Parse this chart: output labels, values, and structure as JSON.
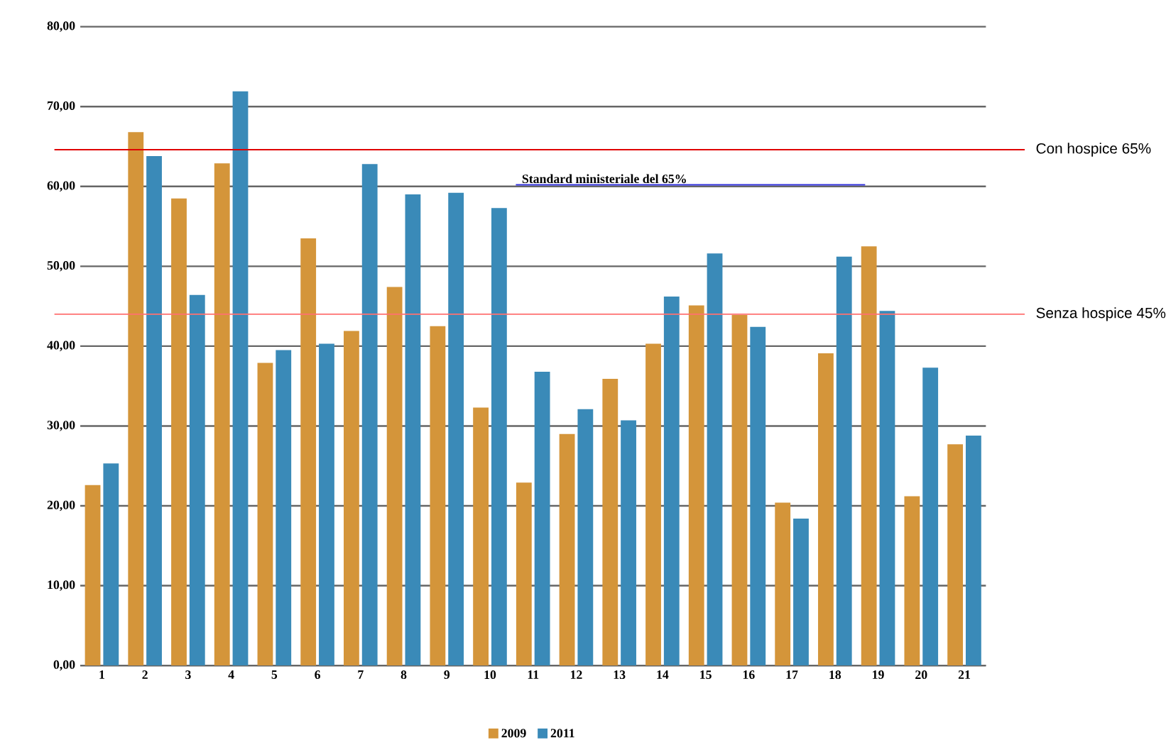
{
  "chart_data": {
    "type": "bar",
    "categories": [
      "1",
      "2",
      "3",
      "4",
      "5",
      "6",
      "7",
      "8",
      "9",
      "10",
      "11",
      "12",
      "13",
      "14",
      "15",
      "16",
      "17",
      "18",
      "19",
      "20",
      "21"
    ],
    "series": [
      {
        "name": "2009",
        "color": "#d4953a",
        "values": [
          22.6,
          66.8,
          58.5,
          62.9,
          37.9,
          53.5,
          41.9,
          47.4,
          42.5,
          32.3,
          22.9,
          29.0,
          35.9,
          40.3,
          45.1,
          43.9,
          20.4,
          39.1,
          52.5,
          21.2,
          27.7
        ]
      },
      {
        "name": "2011",
        "color": "#3a8ab8",
        "values": [
          25.3,
          63.8,
          46.4,
          71.9,
          39.5,
          40.3,
          62.8,
          59.0,
          59.2,
          57.3,
          36.8,
          32.1,
          30.7,
          46.2,
          51.6,
          42.4,
          18.4,
          51.2,
          44.4,
          37.3,
          28.8
        ]
      }
    ],
    "ylim": [
      0,
      80
    ],
    "yticks": [
      {
        "value": 0,
        "label": "0,00"
      },
      {
        "value": 10,
        "label": "10,00"
      },
      {
        "value": 20,
        "label": "20,00"
      },
      {
        "value": 30,
        "label": "30,00"
      },
      {
        "value": 40,
        "label": "40,00"
      },
      {
        "value": 50,
        "label": "50,00"
      },
      {
        "value": 60,
        "label": "60,00"
      },
      {
        "value": 70,
        "label": "70,00"
      },
      {
        "value": 80,
        "label": "80,00"
      }
    ],
    "grid": "y",
    "legend": "bottom",
    "ref_lines": [
      {
        "axis": "y",
        "value": 64.6,
        "label": "Con hospice 65%",
        "color": "#e00000"
      },
      {
        "axis": "y",
        "value": 44.0,
        "label": "Senza hospice 45%",
        "color": "#ff7070"
      },
      {
        "axis": "y",
        "value": 60.2,
        "label": "Standard ministeriale del 65%",
        "color": "#3333dd"
      }
    ]
  }
}
